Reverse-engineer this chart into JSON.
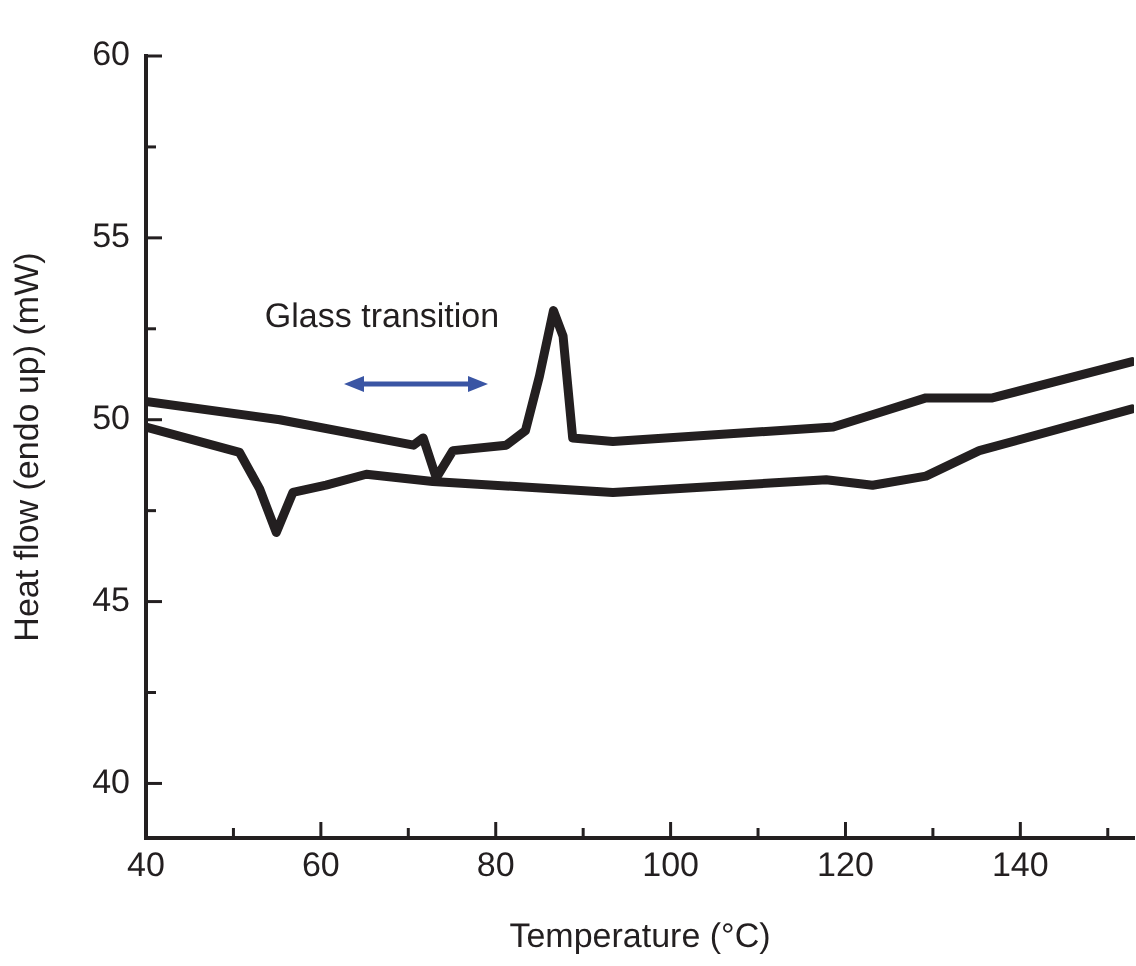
{
  "chart_data": {
    "type": "line",
    "xlabel": "Temperature (°C)",
    "ylabel": "Heat flow (endo up) (mW)",
    "xlim": [
      40,
      153
    ],
    "xticks": [
      40,
      {
        "value": 50,
        "label": null
      },
      60,
      {
        "value": 70,
        "label": null
      },
      80,
      {
        "value": 90,
        "label": null
      },
      100,
      {
        "value": 110,
        "label": null
      },
      120,
      {
        "value": 130,
        "label": null
      },
      140,
      {
        "value": 150,
        "label": null
      }
    ],
    "ylim": [
      38.5,
      60
    ],
    "yticks": [
      40,
      {
        "value": 42.5,
        "label": null
      },
      45,
      {
        "value": 47.5,
        "label": null
      },
      50,
      {
        "value": 52.5,
        "label": null
      },
      55,
      {
        "value": 57.5,
        "label": null
      },
      60
    ],
    "grid": false,
    "legend": false,
    "marker": "none",
    "line_style": "solid",
    "annotations": [
      "Glass transition"
    ],
    "series": [
      {
        "color": "#231f20",
        "x": [
          40,
          55.3,
          70.6,
          71.7,
          73.2,
          75.1,
          81.2,
          83.4,
          85,
          86.6,
          87.7,
          88.8,
          93.4,
          118.6,
          123.9,
          129.2,
          136.8,
          152.8
        ],
        "values": [
          50.5,
          50.0,
          49.3,
          49.5,
          48.4,
          49.15,
          49.3,
          49.7,
          51.2,
          53.0,
          52.3,
          49.5,
          49.4,
          49.8,
          50.2,
          50.6,
          50.6,
          51.6
        ]
      },
      {
        "color": "#231f20",
        "x": [
          40,
          50.7,
          53,
          54.9,
          56.8,
          60.6,
          65.2,
          72.8,
          93.4,
          117.8,
          123.1,
          129.2,
          135.3,
          152.8
        ],
        "values": [
          49.8,
          49.1,
          48.1,
          46.9,
          48.0,
          48.2,
          48.5,
          48.3,
          48.0,
          48.35,
          48.2,
          48.45,
          49.15,
          50.3
        ]
      }
    ]
  }
}
